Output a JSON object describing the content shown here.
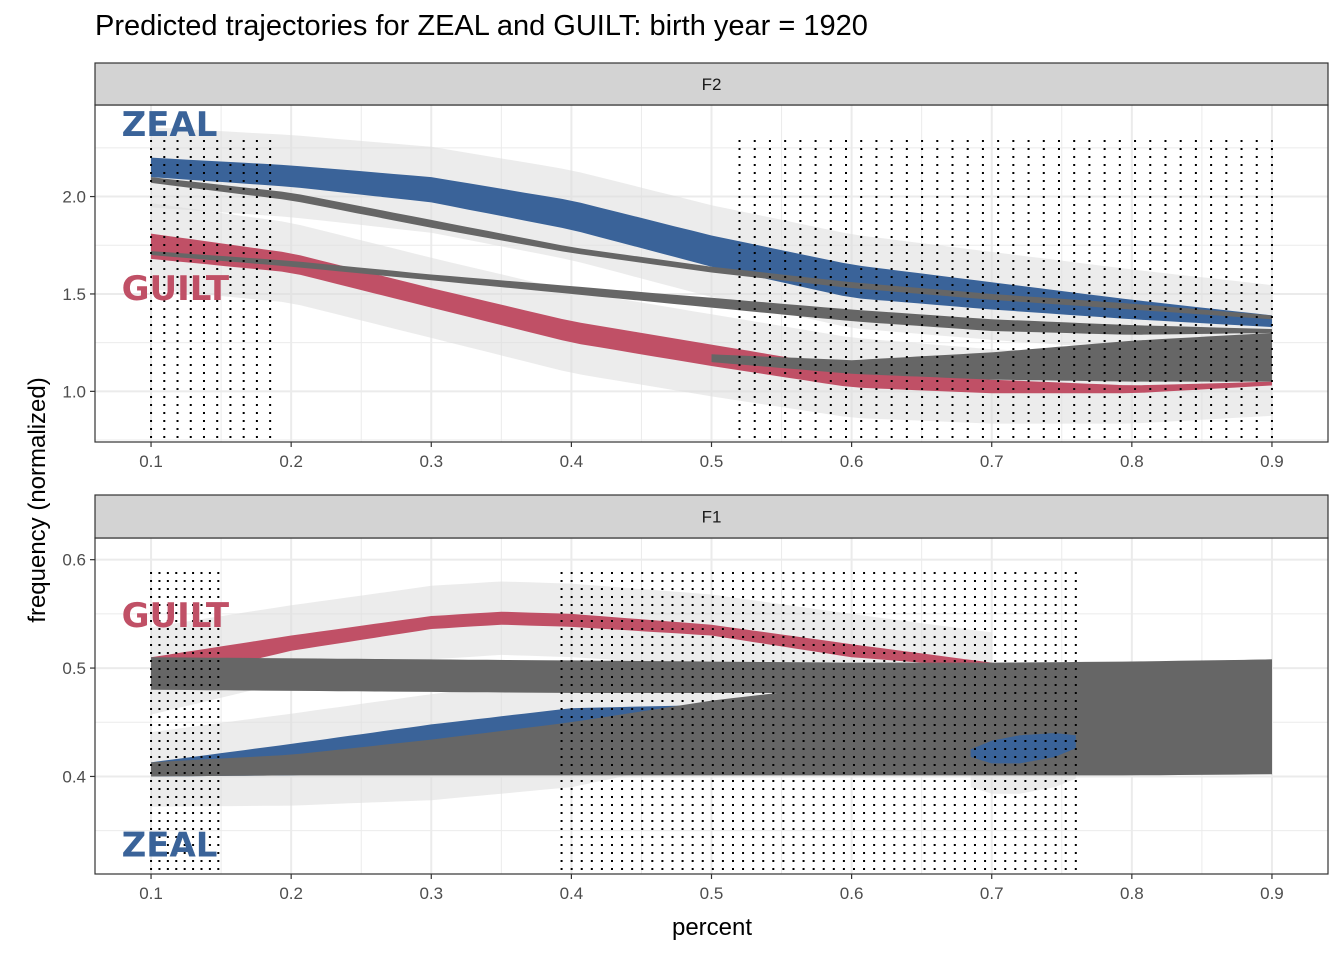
{
  "title": "Predicted trajectories for ZEAL and GUILT: birth year = 1920",
  "colors": {
    "zeal": "#3a6399",
    "guilt": "#c05066",
    "overlap": "#666666",
    "ribbon": "#dcdcdc",
    "strip": "#d3d3d3",
    "grid": "#ebebeb"
  },
  "chart_data": [
    {
      "type": "area",
      "panel": "F2",
      "xlabel": "percent",
      "ylabel": "frequency (normalized)",
      "xlim": [
        0.06,
        0.94
      ],
      "ylim": [
        0.74,
        2.47
      ],
      "x_ticks": [
        0.1,
        0.2,
        0.3,
        0.4,
        0.5,
        0.6,
        0.7,
        0.8,
        0.9
      ],
      "y_ticks": [
        1.0,
        1.5,
        2.0
      ],
      "grid": true,
      "band_start_label": "ZEAL",
      "series": [
        {
          "name": "ZEAL",
          "color": "zeal",
          "x": [
            0.1,
            0.2,
            0.3,
            0.4,
            0.5,
            0.6,
            0.7,
            0.8,
            0.9
          ],
          "upper": [
            2.2,
            2.16,
            2.1,
            1.98,
            1.8,
            1.65,
            1.56,
            1.47,
            1.39
          ],
          "lower": [
            2.1,
            2.05,
            1.97,
            1.83,
            1.64,
            1.48,
            1.42,
            1.37,
            1.33
          ]
        },
        {
          "name": "GUILT",
          "color": "guilt",
          "x": [
            0.1,
            0.2,
            0.3,
            0.4,
            0.5,
            0.6,
            0.7,
            0.8,
            0.9
          ],
          "upper": [
            1.81,
            1.71,
            1.53,
            1.36,
            1.24,
            1.12,
            1.06,
            1.03,
            1.05
          ],
          "lower": [
            1.68,
            1.61,
            1.43,
            1.25,
            1.13,
            1.02,
            0.99,
            0.99,
            1.03
          ]
        },
        {
          "name": "",
          "color": "overlap",
          "x": [
            0.1,
            0.2,
            0.3,
            0.4,
            0.5,
            0.6,
            0.7,
            0.8,
            0.9
          ],
          "upper": [
            2.1,
            2.02,
            1.88,
            1.74,
            1.64,
            1.56,
            1.5,
            1.45,
            1.39
          ],
          "lower": [
            2.07,
            1.98,
            1.84,
            1.71,
            1.61,
            1.53,
            1.47,
            1.42,
            1.37
          ]
        },
        {
          "name": "",
          "color": "overlap",
          "x": [
            0.1,
            0.2,
            0.3,
            0.4,
            0.5,
            0.6,
            0.7,
            0.8,
            0.9
          ],
          "upper": [
            1.72,
            1.67,
            1.6,
            1.54,
            1.48,
            1.42,
            1.37,
            1.34,
            1.32
          ],
          "lower": [
            1.7,
            1.64,
            1.57,
            1.5,
            1.43,
            1.36,
            1.31,
            1.29,
            1.3
          ]
        },
        {
          "name": "",
          "color": "overlap",
          "x": [
            0.5,
            0.6,
            0.7,
            0.8,
            0.9
          ],
          "upper": [
            1.19,
            1.16,
            1.2,
            1.26,
            1.3
          ],
          "lower": [
            1.15,
            1.09,
            1.06,
            1.05,
            1.05
          ]
        }
      ],
      "dotted_lines": [
        {
          "from": 0.1,
          "to": 0.185,
          "count": 10
        },
        {
          "from": 0.52,
          "to": 0.9,
          "count": 36
        }
      ],
      "labels": [
        {
          "text": "ZEAL",
          "color": "zeal",
          "x": 0.079,
          "y": 2.31
        },
        {
          "text": "GUILT",
          "color": "guilt",
          "x": 0.079,
          "y": 1.47
        }
      ]
    },
    {
      "type": "area",
      "panel": "F1",
      "xlabel": "percent",
      "ylabel": "frequency (normalized)",
      "xlim": [
        0.06,
        0.94
      ],
      "ylim": [
        0.31,
        0.62
      ],
      "x_ticks": [
        0.1,
        0.2,
        0.3,
        0.4,
        0.5,
        0.6,
        0.7,
        0.8,
        0.9
      ],
      "y_ticks": [
        0.4,
        0.5,
        0.6
      ],
      "grid": true,
      "series": [
        {
          "name": "GUILT",
          "color": "guilt",
          "x": [
            0.1,
            0.2,
            0.3,
            0.35,
            0.4,
            0.5,
            0.6,
            0.7
          ],
          "upper": [
            0.51,
            0.53,
            0.548,
            0.552,
            0.55,
            0.54,
            0.522,
            0.505
          ],
          "lower": [
            0.485,
            0.516,
            0.536,
            0.54,
            0.538,
            0.53,
            0.51,
            0.5
          ]
        },
        {
          "name": "",
          "color": "overlap",
          "x": [
            0.1,
            0.2,
            0.3,
            0.4,
            0.5,
            0.6,
            0.7,
            0.8,
            0.9
          ],
          "upper": [
            0.51,
            0.509,
            0.508,
            0.507,
            0.506,
            0.505,
            0.505,
            0.506,
            0.508
          ],
          "lower": [
            0.48,
            0.479,
            0.478,
            0.477,
            0.477,
            0.477,
            0.478,
            0.479,
            0.481
          ]
        },
        {
          "name": "ZEAL",
          "color": "zeal",
          "x": [
            0.1,
            0.2,
            0.3,
            0.4,
            0.5,
            0.6
          ],
          "upper": [
            0.413,
            0.43,
            0.448,
            0.463,
            0.466,
            0.461
          ],
          "lower": [
            0.4,
            0.401,
            0.406,
            0.418,
            0.445,
            0.459
          ]
        },
        {
          "name": "",
          "color": "overlap",
          "x": [
            0.1,
            0.2,
            0.3,
            0.4,
            0.5,
            0.6,
            0.7,
            0.8,
            0.9
          ],
          "upper": [
            0.413,
            0.42,
            0.434,
            0.45,
            0.47,
            0.485,
            0.498,
            0.505,
            0.508
          ],
          "lower": [
            0.4,
            0.401,
            0.401,
            0.401,
            0.401,
            0.401,
            0.401,
            0.401,
            0.402
          ]
        },
        {
          "name": "ZEAL",
          "color": "zeal",
          "x": [
            0.685,
            0.7,
            0.72,
            0.745,
            0.76
          ],
          "upper": [
            0.425,
            0.433,
            0.438,
            0.44,
            0.438
          ],
          "lower": [
            0.418,
            0.412,
            0.412,
            0.418,
            0.426
          ]
        }
      ],
      "dotted_lines": [
        {
          "from": 0.1,
          "to": 0.148,
          "count": 9
        },
        {
          "from": 0.393,
          "to": 0.76,
          "count": 52
        }
      ],
      "labels": [
        {
          "text": "GUILT",
          "color": "guilt",
          "x": 0.079,
          "y": 0.538
        },
        {
          "text": "ZEAL",
          "color": "zeal",
          "x": 0.079,
          "y": 0.326
        }
      ]
    }
  ]
}
